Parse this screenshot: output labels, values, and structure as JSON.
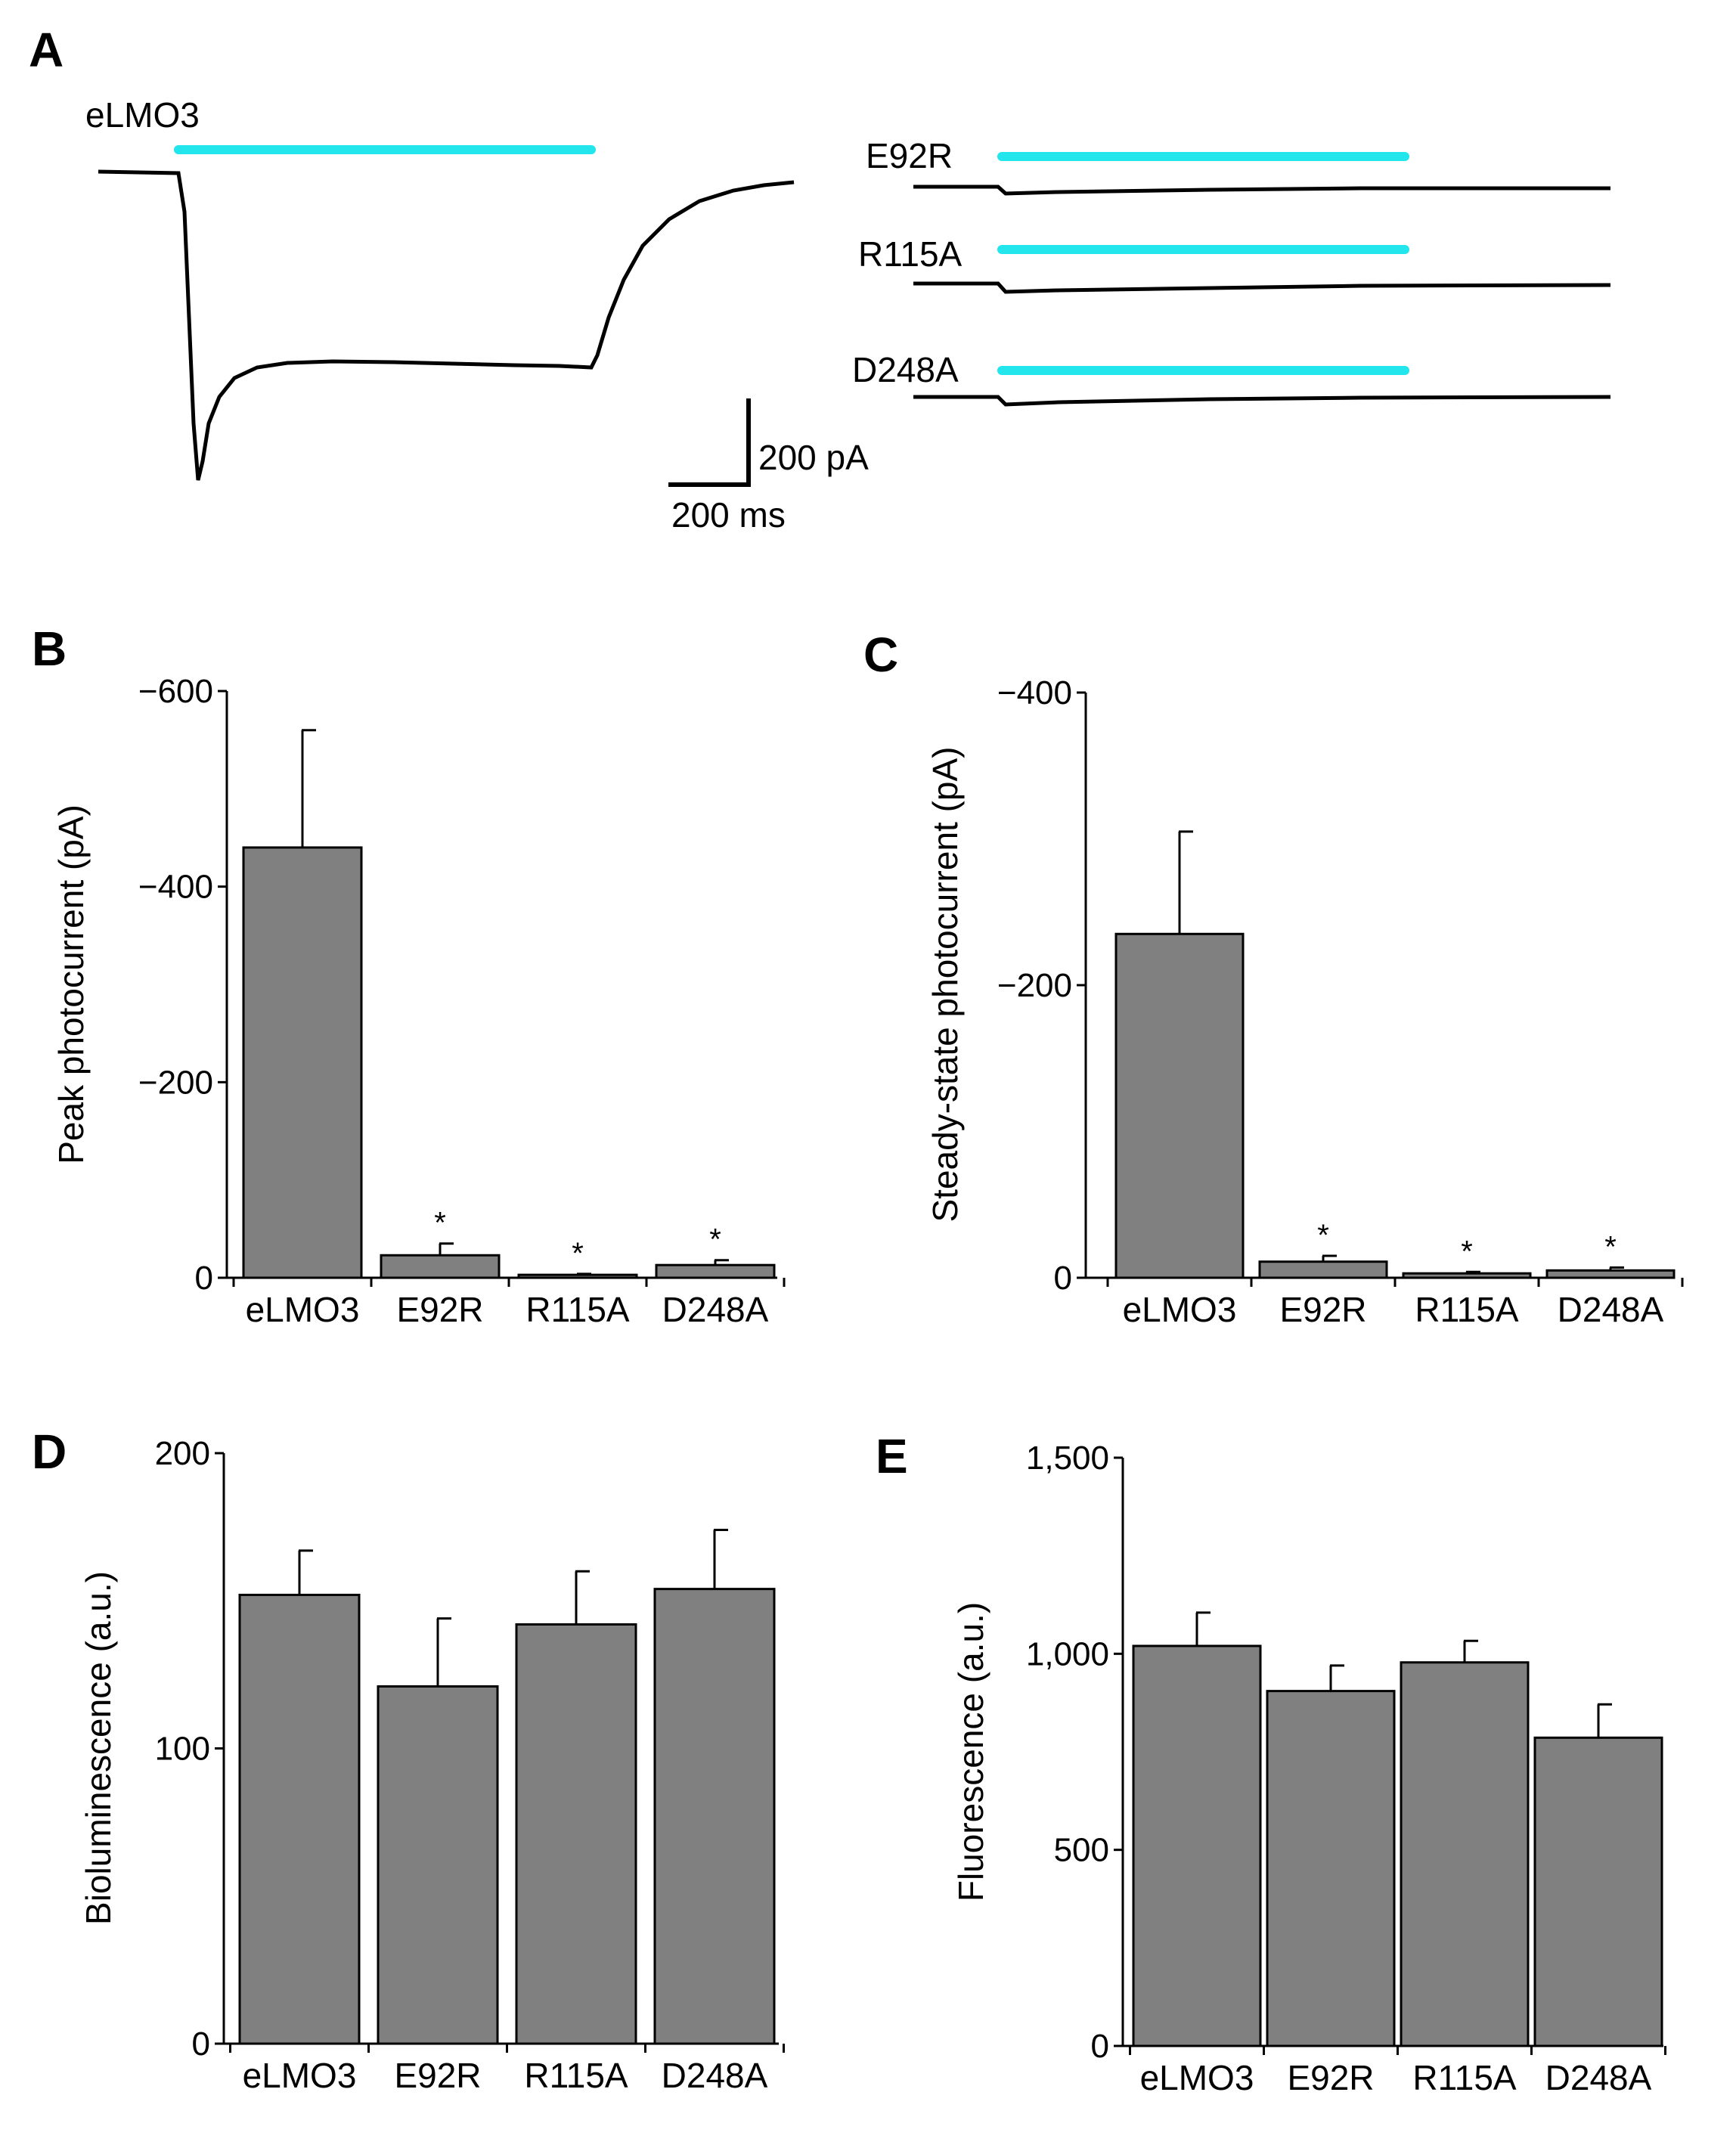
{
  "panel_A": {
    "letter": "A",
    "light_color": "#22e6ec",
    "traces": [
      {
        "label": "eLMO3"
      },
      {
        "label": "E92R"
      },
      {
        "label": "R115A"
      },
      {
        "label": "D248A"
      }
    ],
    "scale_bar": {
      "current_label": "200 pA",
      "time_label": "200 ms"
    }
  },
  "chart_data": [
    {
      "panel": "B",
      "type": "bar",
      "categories": [
        "eLMO3",
        "E92R",
        "R115A",
        "D248A"
      ],
      "values": [
        -440,
        -23,
        -3,
        -13
      ],
      "errors": [
        120,
        12,
        1,
        5
      ],
      "significant": [
        "",
        "*",
        "*",
        "*"
      ],
      "ylabel": "Peak photocurrent (pA)",
      "ylim": [
        0,
        -600
      ],
      "yticks": [
        0,
        -200,
        -400,
        -600
      ],
      "ytick_labels": [
        "0",
        "−200",
        "−400",
        "−600"
      ],
      "bar_color": "#808080"
    },
    {
      "panel": "C",
      "type": "bar",
      "categories": [
        "eLMO3",
        "E92R",
        "R115A",
        "D248A"
      ],
      "values": [
        -235,
        -11,
        -3,
        -5
      ],
      "errors": [
        70,
        4,
        1,
        2
      ],
      "significant": [
        "",
        "*",
        "*",
        "*"
      ],
      "ylabel": "Steady-state photocurrent (pA)",
      "ylim": [
        0,
        -400
      ],
      "yticks": [
        0,
        -200,
        -400
      ],
      "ytick_labels": [
        "0",
        "−200",
        "−400"
      ],
      "bar_color": "#808080"
    },
    {
      "panel": "D",
      "type": "bar",
      "categories": [
        "eLMO3",
        "E92R",
        "R115A",
        "D248A"
      ],
      "values": [
        152,
        121,
        142,
        154
      ],
      "errors": [
        15,
        23,
        18,
        20
      ],
      "significant": [
        "",
        "",
        "",
        ""
      ],
      "ylabel": "Bioluminescence (a.u.)",
      "ylim": [
        0,
        200
      ],
      "yticks": [
        0,
        100,
        200
      ],
      "ytick_labels": [
        "0",
        "100",
        "200"
      ],
      "bar_color": "#808080"
    },
    {
      "panel": "E",
      "type": "bar",
      "categories": [
        "eLMO3",
        "E92R",
        "R115A",
        "D248A"
      ],
      "values": [
        1020,
        905,
        978,
        786
      ],
      "errors": [
        85,
        65,
        55,
        85
      ],
      "significant": [
        "",
        "",
        "",
        ""
      ],
      "ylabel": "Fluorescence (a.u.)",
      "ylim": [
        0,
        1500
      ],
      "yticks": [
        0,
        500,
        1000,
        1500
      ],
      "ytick_labels": [
        "0",
        "500",
        "1,000",
        "1,500"
      ],
      "bar_color": "#808080"
    }
  ]
}
